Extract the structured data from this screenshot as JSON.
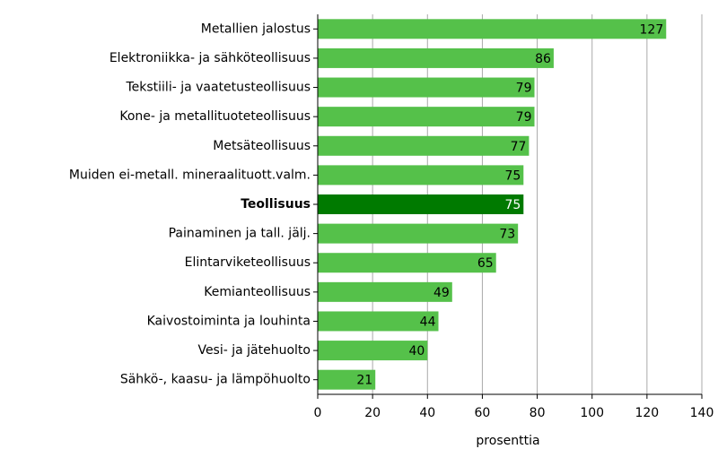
{
  "chart_data": {
    "type": "barh",
    "categories": [
      "Metallien jalostus",
      "Elektroniikka- ja sähköteollisuus",
      "Tekstiili- ja vaatetusteollisuus",
      "Kone- ja metallituoteteollisuus",
      "Metsäteollisuus",
      "Muiden ei-metall. mineraalituott.valm.",
      "Teollisuus",
      "Painaminen ja tall. jälj.",
      "Elintarviketeollisuus",
      "Kemianteollisuus",
      "Kaivostoiminta ja louhinta",
      "Vesi- ja jätehuolto",
      "Sähkö-, kaasu- ja lämpöhuolto"
    ],
    "values": [
      127,
      86,
      79,
      79,
      77,
      75,
      75,
      73,
      65,
      49,
      44,
      40,
      21
    ],
    "colors": [
      "#55c14a",
      "#55c14a",
      "#55c14a",
      "#55c14a",
      "#55c14a",
      "#55c14a",
      "#007a00",
      "#55c14a",
      "#55c14a",
      "#55c14a",
      "#55c14a",
      "#55c14a",
      "#55c14a"
    ],
    "xlim": [
      0,
      140
    ],
    "xticks": [
      0,
      20,
      40,
      60,
      80,
      100,
      120,
      140
    ],
    "xlabel": "prosenttia",
    "grid": true
  }
}
